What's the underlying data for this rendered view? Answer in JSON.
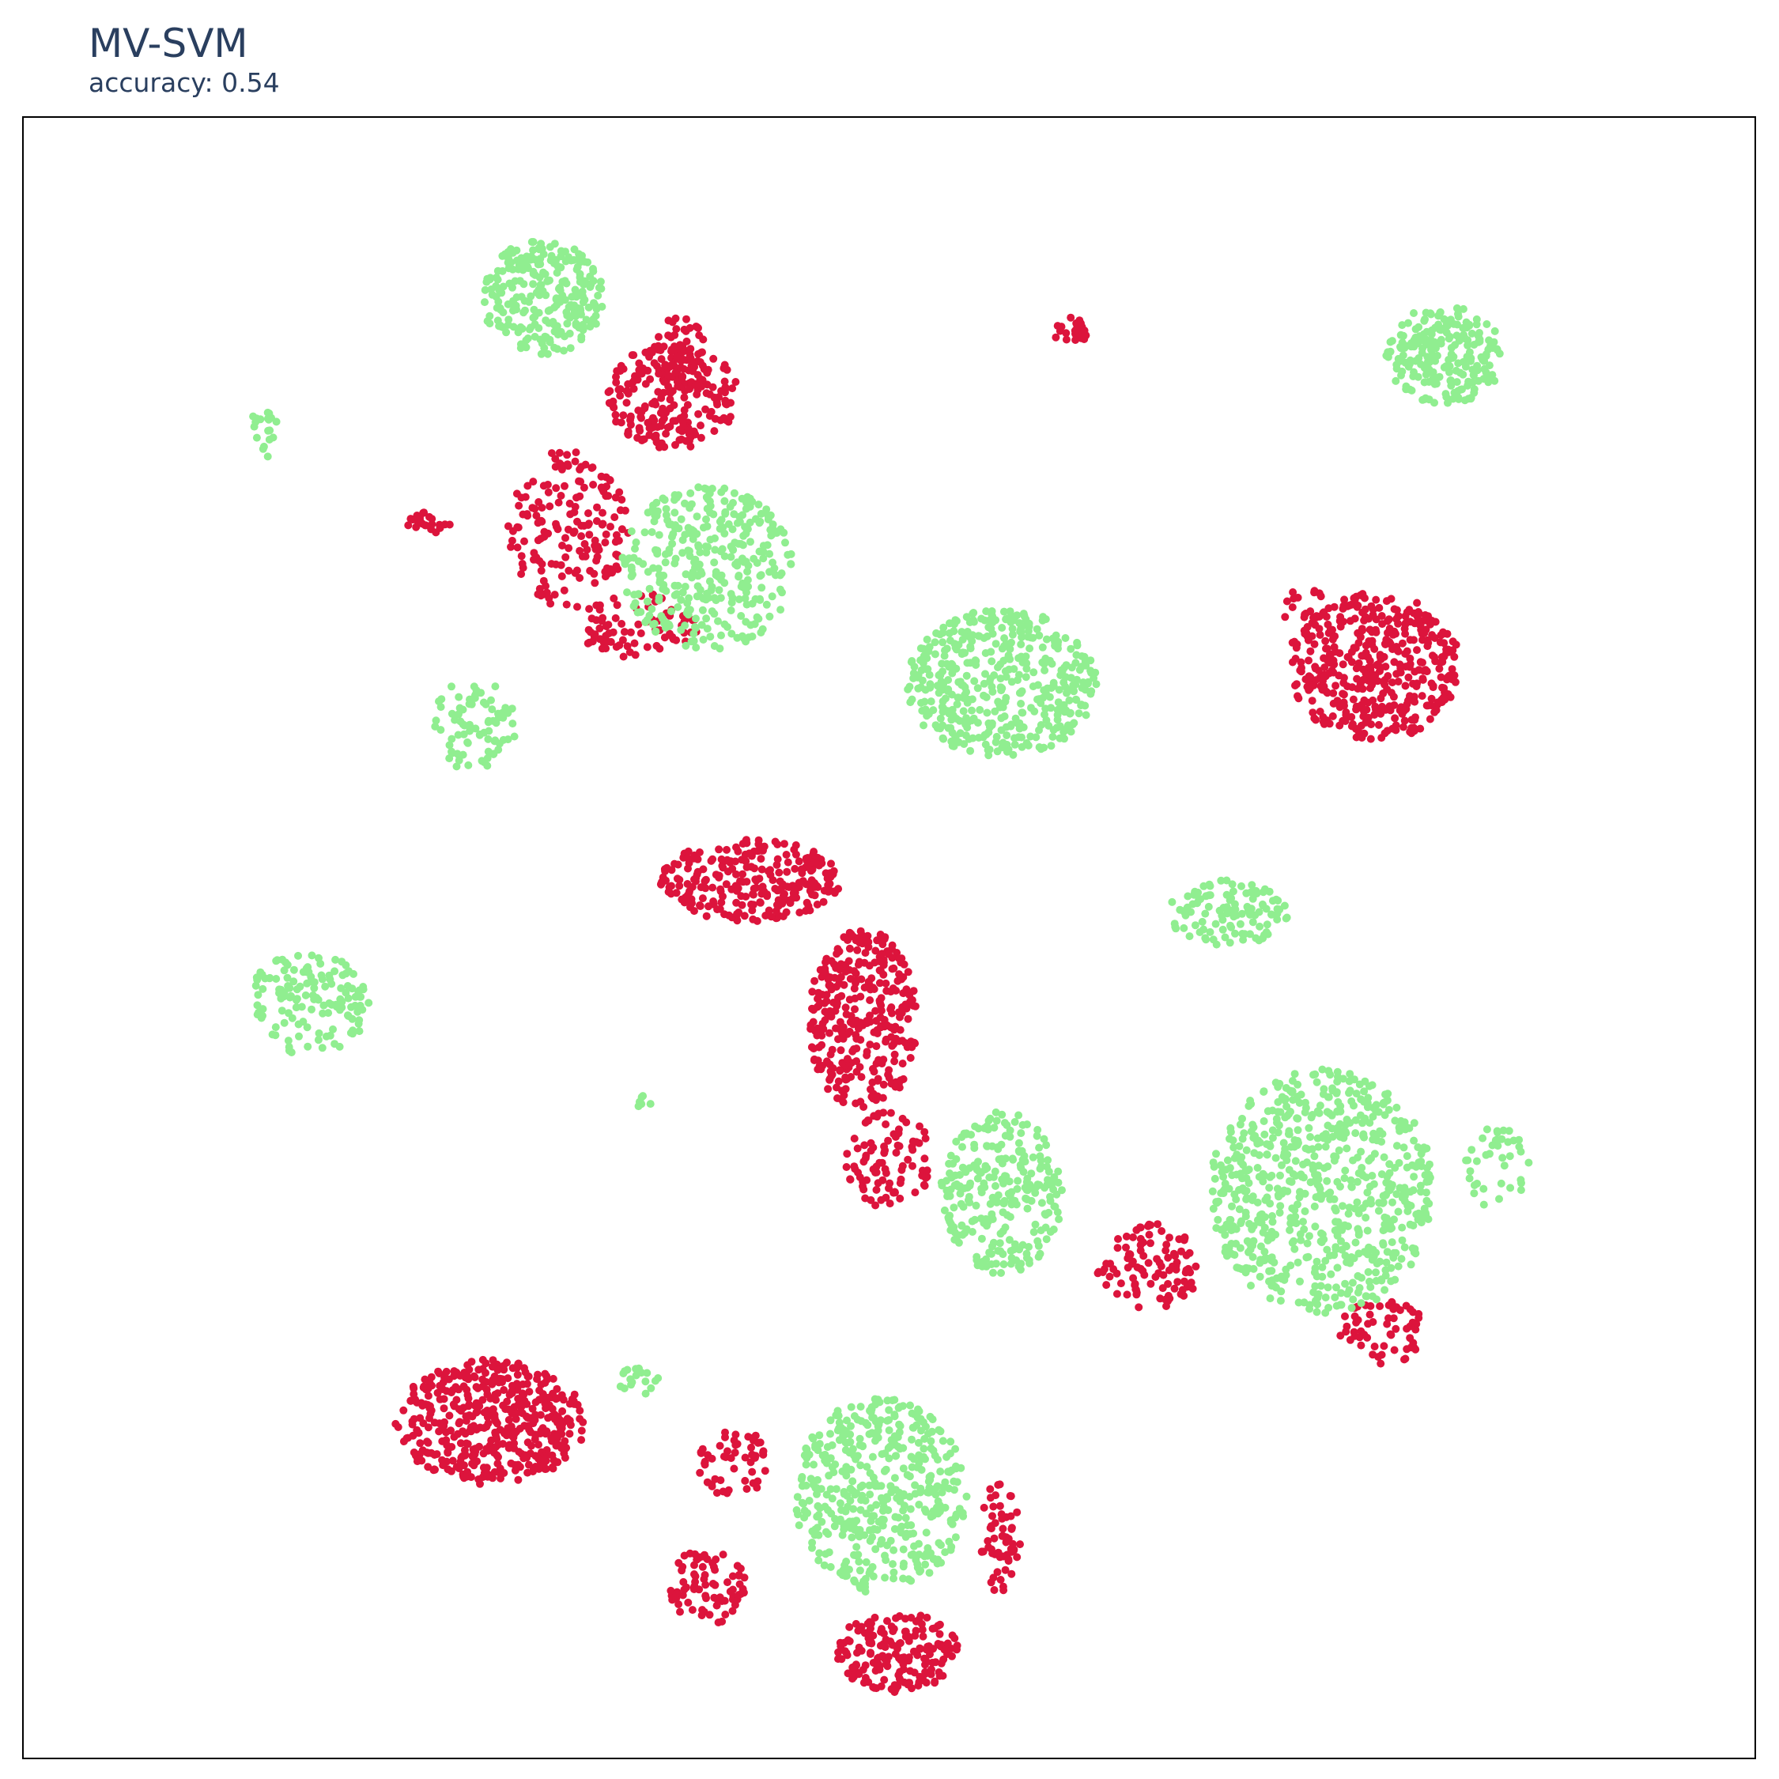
{
  "chart_data": {
    "type": "scatter",
    "title": "MV-SVM",
    "subtitle": "accuracy: 0.54",
    "xlabel": "",
    "ylabel": "",
    "xlim": [
      0,
      100
    ],
    "ylim": [
      0,
      100
    ],
    "grid": false,
    "legend": "none",
    "series": [
      {
        "color": "#dc143c",
        "clusters": [
          {
            "cx": 37.5,
            "cy": 83.0,
            "rx": 3.8,
            "ry": 3.2,
            "n": 220
          },
          {
            "cx": 38.0,
            "cy": 85.5,
            "rx": 1.6,
            "ry": 2.4,
            "n": 60
          },
          {
            "cx": 31.5,
            "cy": 75.0,
            "rx": 3.5,
            "ry": 5.0,
            "n": 170
          },
          {
            "cx": 35.5,
            "cy": 69.0,
            "rx": 3.5,
            "ry": 2.0,
            "n": 80
          },
          {
            "cx": 23.4,
            "cy": 75.3,
            "rx": 1.3,
            "ry": 0.7,
            "n": 25
          },
          {
            "cx": 60.5,
            "cy": 86.9,
            "rx": 1.0,
            "ry": 0.9,
            "n": 25
          },
          {
            "cx": 78.0,
            "cy": 66.5,
            "rx": 5.0,
            "ry": 4.5,
            "n": 430
          },
          {
            "cx": 74.0,
            "cy": 70.0,
            "rx": 1.2,
            "ry": 1.6,
            "n": 20
          },
          {
            "cx": 42.0,
            "cy": 53.5,
            "rx": 5.2,
            "ry": 2.5,
            "n": 260
          },
          {
            "cx": 48.5,
            "cy": 45.0,
            "rx": 3.2,
            "ry": 5.5,
            "n": 330
          },
          {
            "cx": 50.0,
            "cy": 36.5,
            "rx": 2.5,
            "ry": 3.0,
            "n": 90
          },
          {
            "cx": 65.0,
            "cy": 30.0,
            "rx": 3.0,
            "ry": 2.6,
            "n": 100
          },
          {
            "cx": 78.5,
            "cy": 26.0,
            "rx": 2.5,
            "ry": 2.0,
            "n": 60
          },
          {
            "cx": 27.0,
            "cy": 20.5,
            "rx": 5.5,
            "ry": 3.8,
            "n": 460
          },
          {
            "cx": 41.0,
            "cy": 18.0,
            "rx": 2.0,
            "ry": 2.2,
            "n": 55
          },
          {
            "cx": 39.5,
            "cy": 10.5,
            "rx": 2.2,
            "ry": 2.4,
            "n": 80
          },
          {
            "cx": 50.5,
            "cy": 6.5,
            "rx": 3.5,
            "ry": 2.5,
            "n": 180
          },
          {
            "cx": 56.5,
            "cy": 13.5,
            "rx": 1.2,
            "ry": 3.5,
            "n": 60
          }
        ]
      },
      {
        "color": "#90ee90",
        "clusters": [
          {
            "cx": 30.0,
            "cy": 89.0,
            "rx": 3.5,
            "ry": 3.5,
            "n": 260
          },
          {
            "cx": 39.5,
            "cy": 72.5,
            "rx": 5.0,
            "ry": 5.0,
            "n": 340
          },
          {
            "cx": 26.0,
            "cy": 63.0,
            "rx": 2.5,
            "ry": 2.8,
            "n": 80
          },
          {
            "cx": 14.0,
            "cy": 81.0,
            "rx": 0.8,
            "ry": 1.8,
            "n": 20
          },
          {
            "cx": 82.0,
            "cy": 85.5,
            "rx": 3.5,
            "ry": 3.0,
            "n": 220
          },
          {
            "cx": 56.5,
            "cy": 65.5,
            "rx": 5.5,
            "ry": 4.5,
            "n": 450
          },
          {
            "cx": 69.5,
            "cy": 51.5,
            "rx": 3.5,
            "ry": 2.0,
            "n": 110
          },
          {
            "cx": 16.5,
            "cy": 46.0,
            "rx": 3.5,
            "ry": 3.2,
            "n": 140
          },
          {
            "cx": 36.0,
            "cy": 40.0,
            "rx": 0.8,
            "ry": 0.4,
            "n": 6
          },
          {
            "cx": 56.5,
            "cy": 34.5,
            "rx": 3.5,
            "ry": 5.0,
            "n": 260
          },
          {
            "cx": 75.0,
            "cy": 34.5,
            "rx": 6.5,
            "ry": 7.5,
            "n": 680
          },
          {
            "cx": 85.0,
            "cy": 36.0,
            "rx": 2.0,
            "ry": 2.5,
            "n": 40
          },
          {
            "cx": 49.5,
            "cy": 16.0,
            "rx": 5.0,
            "ry": 6.0,
            "n": 450
          },
          {
            "cx": 35.5,
            "cy": 23.0,
            "rx": 1.2,
            "ry": 0.9,
            "n": 18
          }
        ]
      }
    ]
  }
}
